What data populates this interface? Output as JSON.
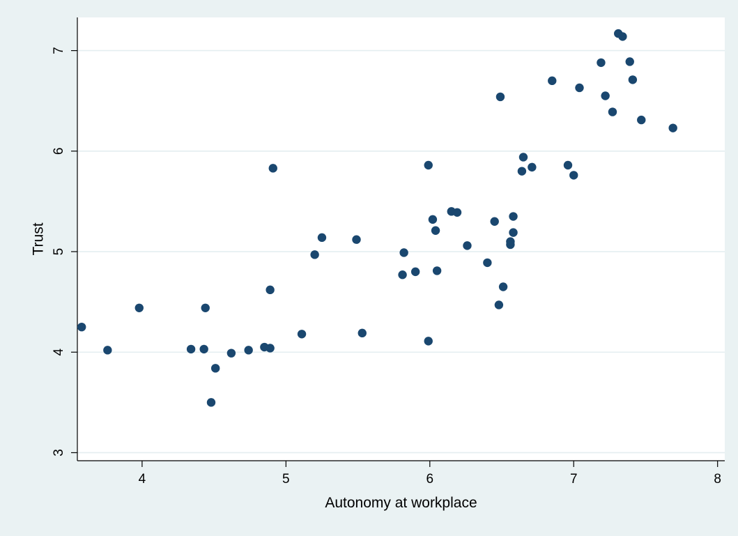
{
  "chart_data": {
    "type": "scatter",
    "xlabel": "Autonomy at workplace",
    "ylabel": "Trust",
    "xlim": [
      3.55,
      8.05
    ],
    "ylim": [
      2.92,
      7.33
    ],
    "xticks": [
      4,
      5,
      6,
      7,
      8
    ],
    "yticks": [
      3,
      4,
      5,
      6,
      7
    ],
    "grid": "horizontal",
    "colors": {
      "background": "#eaf2f3",
      "plot_background": "#ffffff",
      "grid": "#e4eef0",
      "marker": "#1a476f"
    },
    "points": [
      {
        "x": 3.58,
        "y": 4.25
      },
      {
        "x": 3.76,
        "y": 4.02
      },
      {
        "x": 3.98,
        "y": 4.44
      },
      {
        "x": 4.34,
        "y": 4.03
      },
      {
        "x": 4.43,
        "y": 4.03
      },
      {
        "x": 4.44,
        "y": 4.44
      },
      {
        "x": 4.48,
        "y": 3.5
      },
      {
        "x": 4.51,
        "y": 3.84
      },
      {
        "x": 4.62,
        "y": 3.99
      },
      {
        "x": 4.74,
        "y": 4.02
      },
      {
        "x": 4.85,
        "y": 4.05
      },
      {
        "x": 4.89,
        "y": 4.04
      },
      {
        "x": 4.89,
        "y": 4.62
      },
      {
        "x": 4.91,
        "y": 5.83
      },
      {
        "x": 5.11,
        "y": 4.18
      },
      {
        "x": 5.2,
        "y": 4.97
      },
      {
        "x": 5.25,
        "y": 5.14
      },
      {
        "x": 5.49,
        "y": 5.12
      },
      {
        "x": 5.53,
        "y": 4.19
      },
      {
        "x": 5.81,
        "y": 4.77
      },
      {
        "x": 5.82,
        "y": 4.99
      },
      {
        "x": 5.9,
        "y": 4.8
      },
      {
        "x": 5.99,
        "y": 5.86
      },
      {
        "x": 5.99,
        "y": 4.11
      },
      {
        "x": 6.02,
        "y": 5.32
      },
      {
        "x": 6.04,
        "y": 5.21
      },
      {
        "x": 6.05,
        "y": 4.81
      },
      {
        "x": 6.15,
        "y": 5.4
      },
      {
        "x": 6.19,
        "y": 5.39
      },
      {
        "x": 6.26,
        "y": 5.06
      },
      {
        "x": 6.4,
        "y": 4.89
      },
      {
        "x": 6.45,
        "y": 5.3
      },
      {
        "x": 6.48,
        "y": 4.47
      },
      {
        "x": 6.49,
        "y": 6.54
      },
      {
        "x": 6.51,
        "y": 4.65
      },
      {
        "x": 6.56,
        "y": 5.1
      },
      {
        "x": 6.56,
        "y": 5.07
      },
      {
        "x": 6.58,
        "y": 5.35
      },
      {
        "x": 6.58,
        "y": 5.19
      },
      {
        "x": 6.64,
        "y": 5.8
      },
      {
        "x": 6.65,
        "y": 5.94
      },
      {
        "x": 6.71,
        "y": 5.84
      },
      {
        "x": 6.85,
        "y": 6.7
      },
      {
        "x": 6.96,
        "y": 5.86
      },
      {
        "x": 7.0,
        "y": 5.76
      },
      {
        "x": 7.04,
        "y": 6.63
      },
      {
        "x": 7.19,
        "y": 6.88
      },
      {
        "x": 7.22,
        "y": 6.55
      },
      {
        "x": 7.27,
        "y": 6.39
      },
      {
        "x": 7.31,
        "y": 7.17
      },
      {
        "x": 7.34,
        "y": 7.14
      },
      {
        "x": 7.39,
        "y": 6.89
      },
      {
        "x": 7.41,
        "y": 6.71
      },
      {
        "x": 7.47,
        "y": 6.31
      },
      {
        "x": 7.69,
        "y": 6.23
      }
    ]
  }
}
